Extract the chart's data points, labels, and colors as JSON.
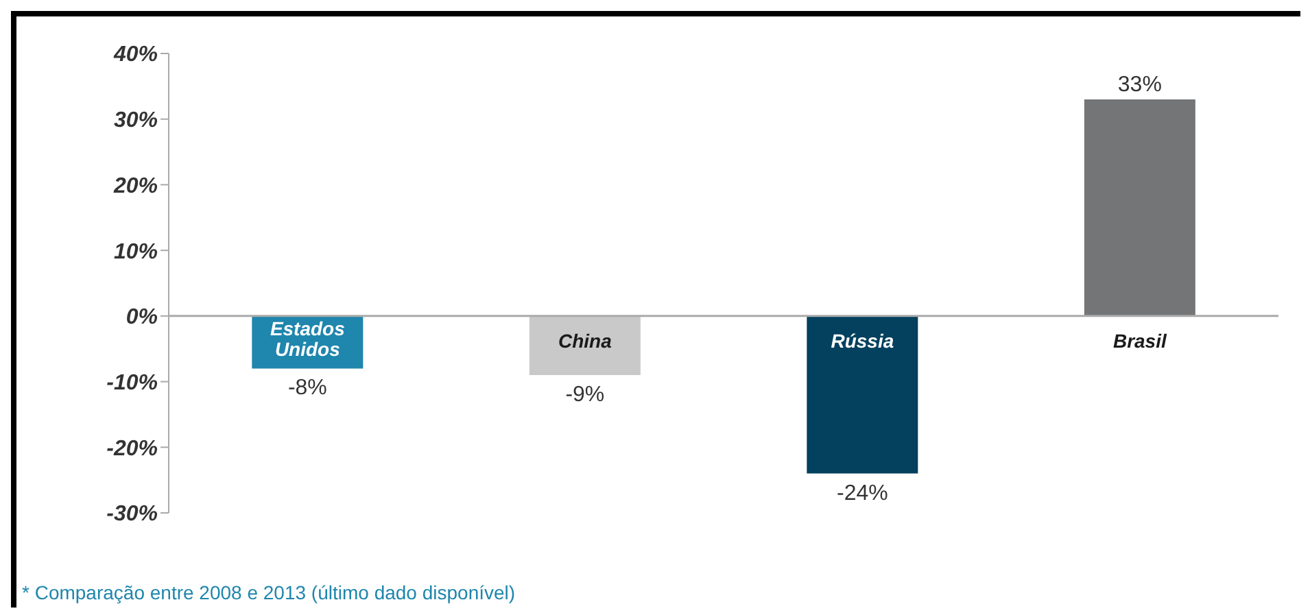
{
  "chart_data": {
    "type": "bar",
    "categories": [
      "Estados Unidos",
      "China",
      "Rússia",
      "Brasil"
    ],
    "values": [
      -8,
      -9,
      -24,
      33
    ],
    "colors": [
      "#1f86ad",
      "#c9c9c9",
      "#03415e",
      "#737577"
    ],
    "value_labels": [
      "-8%",
      "-9%",
      "-24%",
      "33%"
    ],
    "ylim": [
      -30,
      40
    ],
    "yticks": [
      {
        "value": -30,
        "label": "-30%"
      },
      {
        "value": -20,
        "label": "-20%"
      },
      {
        "value": -10,
        "label": "-10%"
      },
      {
        "value": 0,
        "label": "0%"
      },
      {
        "value": 10,
        "label": "10%"
      },
      {
        "value": 20,
        "label": "20%"
      },
      {
        "value": 30,
        "label": "30%"
      },
      {
        "value": 40,
        "label": "40%"
      }
    ],
    "annotations": [
      "* Comparação entre 2008 e 2013 (último dado disponível)"
    ]
  }
}
